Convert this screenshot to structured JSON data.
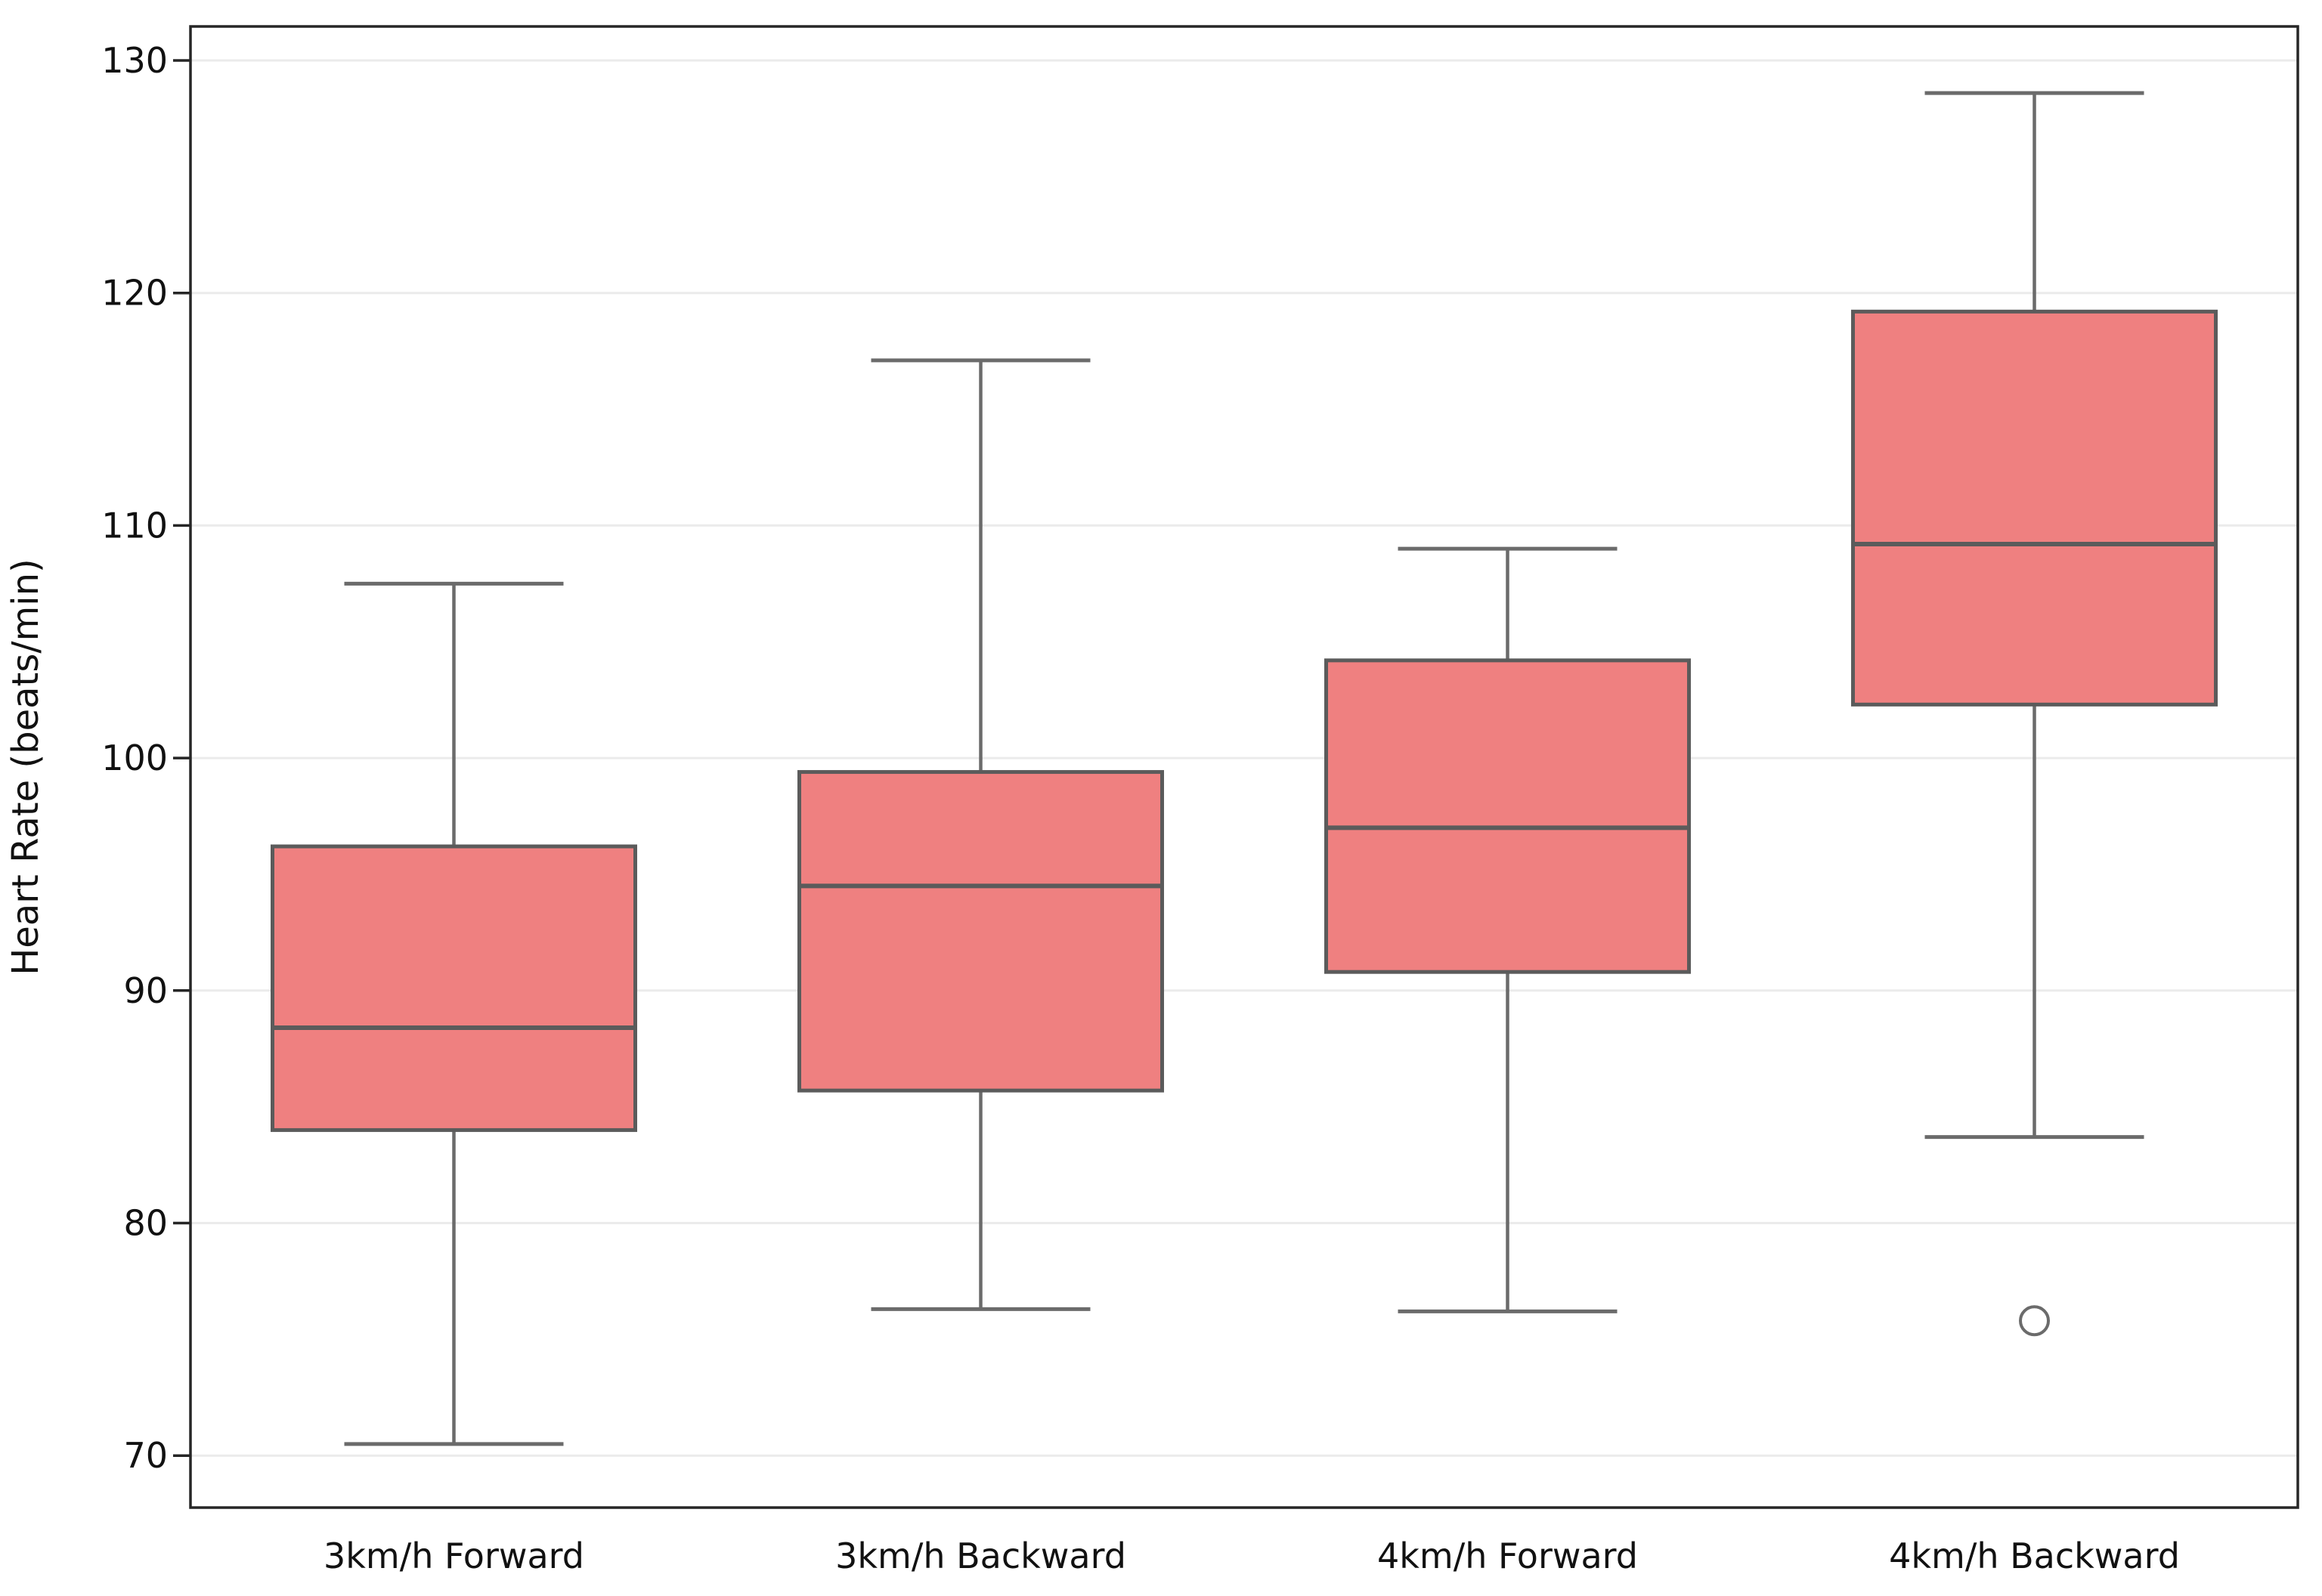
{
  "chart_data": {
    "type": "boxplot",
    "title": "",
    "xlabel": "",
    "ylabel": "Heart Rate (beats/min)",
    "categories": [
      "3km/h Forward",
      "3km/h Backward",
      "4km/h Forward",
      "4km/h Backward"
    ],
    "boxes": [
      {
        "category": "3km/h Forward",
        "whisker_low": 70.5,
        "q1": 84.0,
        "median": 88.4,
        "q3": 96.2,
        "whisker_high": 107.5,
        "outliers": []
      },
      {
        "category": "3km/h Backward",
        "whisker_low": 76.3,
        "q1": 85.7,
        "median": 94.5,
        "q3": 99.4,
        "whisker_high": 117.1,
        "outliers": []
      },
      {
        "category": "4km/h Forward",
        "whisker_low": 76.2,
        "q1": 90.8,
        "median": 97.0,
        "q3": 104.2,
        "whisker_high": 109.0,
        "outliers": []
      },
      {
        "category": "4km/h Backward",
        "whisker_low": 83.7,
        "q1": 102.3,
        "median": 109.2,
        "q3": 119.2,
        "whisker_high": 128.6,
        "outliers": [
          75.8
        ]
      }
    ],
    "yticks": [
      70,
      80,
      90,
      100,
      110,
      120,
      130
    ],
    "ylim": [
      67.8,
      131.5
    ],
    "grid": "horizontal",
    "legend": "none",
    "colors": {
      "box_fill": "#ef8080",
      "box_edge": "#5b5b5b",
      "median": "#5b5b5b",
      "whisker": "#6b6b6b",
      "outlier_edge": "#6b6b6b",
      "grid": "#ebebeb",
      "spine": "#262626",
      "text": "#111111",
      "background": "#ffffff"
    }
  }
}
